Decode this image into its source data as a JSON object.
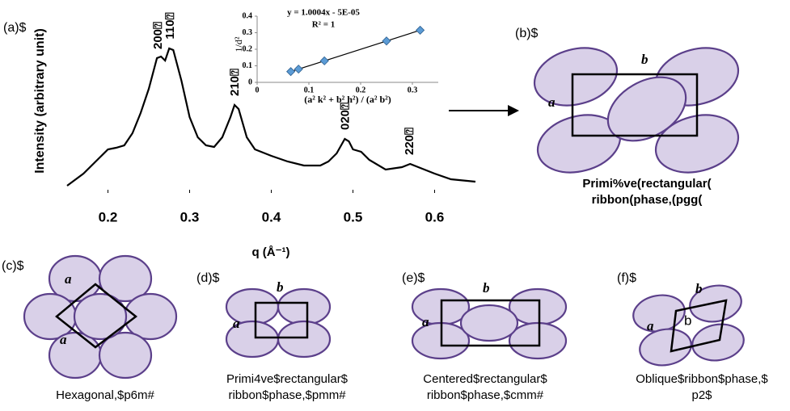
{
  "chart_data": [
    {
      "type": "line",
      "panel_label": "(a)$",
      "ylabel": "Intensity (arbitrary unit)",
      "xlabel": "q (Å⁻¹)",
      "xlim": [
        0.15,
        0.65
      ],
      "xticks": [
        0.2,
        0.3,
        0.4,
        0.5,
        0.6
      ],
      "ylim": [
        0,
        230
      ],
      "color": "#000000",
      "x": [
        0.15,
        0.17,
        0.19,
        0.2,
        0.21,
        0.22,
        0.23,
        0.24,
        0.25,
        0.26,
        0.265,
        0.27,
        0.275,
        0.28,
        0.29,
        0.3,
        0.31,
        0.32,
        0.33,
        0.34,
        0.35,
        0.355,
        0.36,
        0.37,
        0.38,
        0.4,
        0.42,
        0.44,
        0.46,
        0.47,
        0.48,
        0.49,
        0.495,
        0.5,
        0.51,
        0.52,
        0.54,
        0.56,
        0.57,
        0.58,
        0.6,
        0.62,
        0.65
      ],
      "values": [
        5,
        20,
        40,
        50,
        52,
        55,
        70,
        95,
        125,
        163,
        165,
        160,
        175,
        173,
        135,
        90,
        65,
        55,
        53,
        65,
        90,
        105,
        100,
        65,
        50,
        42,
        35,
        30,
        30,
        35,
        45,
        63,
        60,
        50,
        47,
        37,
        25,
        28,
        32,
        28,
        20,
        13,
        10
      ],
      "annotations": [
        {
          "text": "200⍰",
          "x": 0.262
        },
        {
          "text": "110⍰",
          "x": 0.277
        },
        {
          "text": "210⍰",
          "x": 0.356
        },
        {
          "text": "020⍰",
          "x": 0.491
        },
        {
          "text": "220⍰",
          "x": 0.57
        }
      ]
    },
    {
      "type": "scatter",
      "ylabel": "1/d²",
      "xlabel": "(a² k² + b² h²) / (a² b²)",
      "equation": "y = 1.0004x - 5E-05",
      "r_squared": "R² = 1",
      "xlim": [
        0,
        0.35
      ],
      "xticks": [
        0,
        0.1,
        0.2,
        0.3
      ],
      "ylim": [
        0,
        0.4
      ],
      "yticks": [
        0,
        0.1,
        0.2,
        0.3,
        0.4
      ],
      "color": "#5b9bd5",
      "x": [
        0.065,
        0.08,
        0.13,
        0.25,
        0.315
      ],
      "values": [
        0.065,
        0.08,
        0.13,
        0.25,
        0.315
      ]
    }
  ],
  "panels": [
    {
      "label": "(b)$",
      "caption": [
        "Primi%ve(rectangular(",
        "ribbon(phase,(pgg("
      ],
      "axes": [
        "b",
        "a"
      ]
    },
    {
      "label": "(c)$",
      "caption": [
        "Hexagonal,$p6m#"
      ],
      "axes": [
        "a",
        "a"
      ]
    },
    {
      "label": "(d)$",
      "caption": [
        "Primi4ve$rectangular$",
        "ribbon$phase,$pmm#"
      ],
      "axes": [
        "b",
        "a"
      ]
    },
    {
      "label": "(e)$",
      "caption": [
        "Centered$rectangular$",
        "ribbon$phase,$cmm#"
      ],
      "axes": [
        "b",
        "a"
      ]
    },
    {
      "label": "(f)$",
      "caption": [
        "Oblique$ribbon$phase,$",
        "p2$"
      ],
      "axes": [
        "b",
        "a",
        "b"
      ]
    }
  ]
}
